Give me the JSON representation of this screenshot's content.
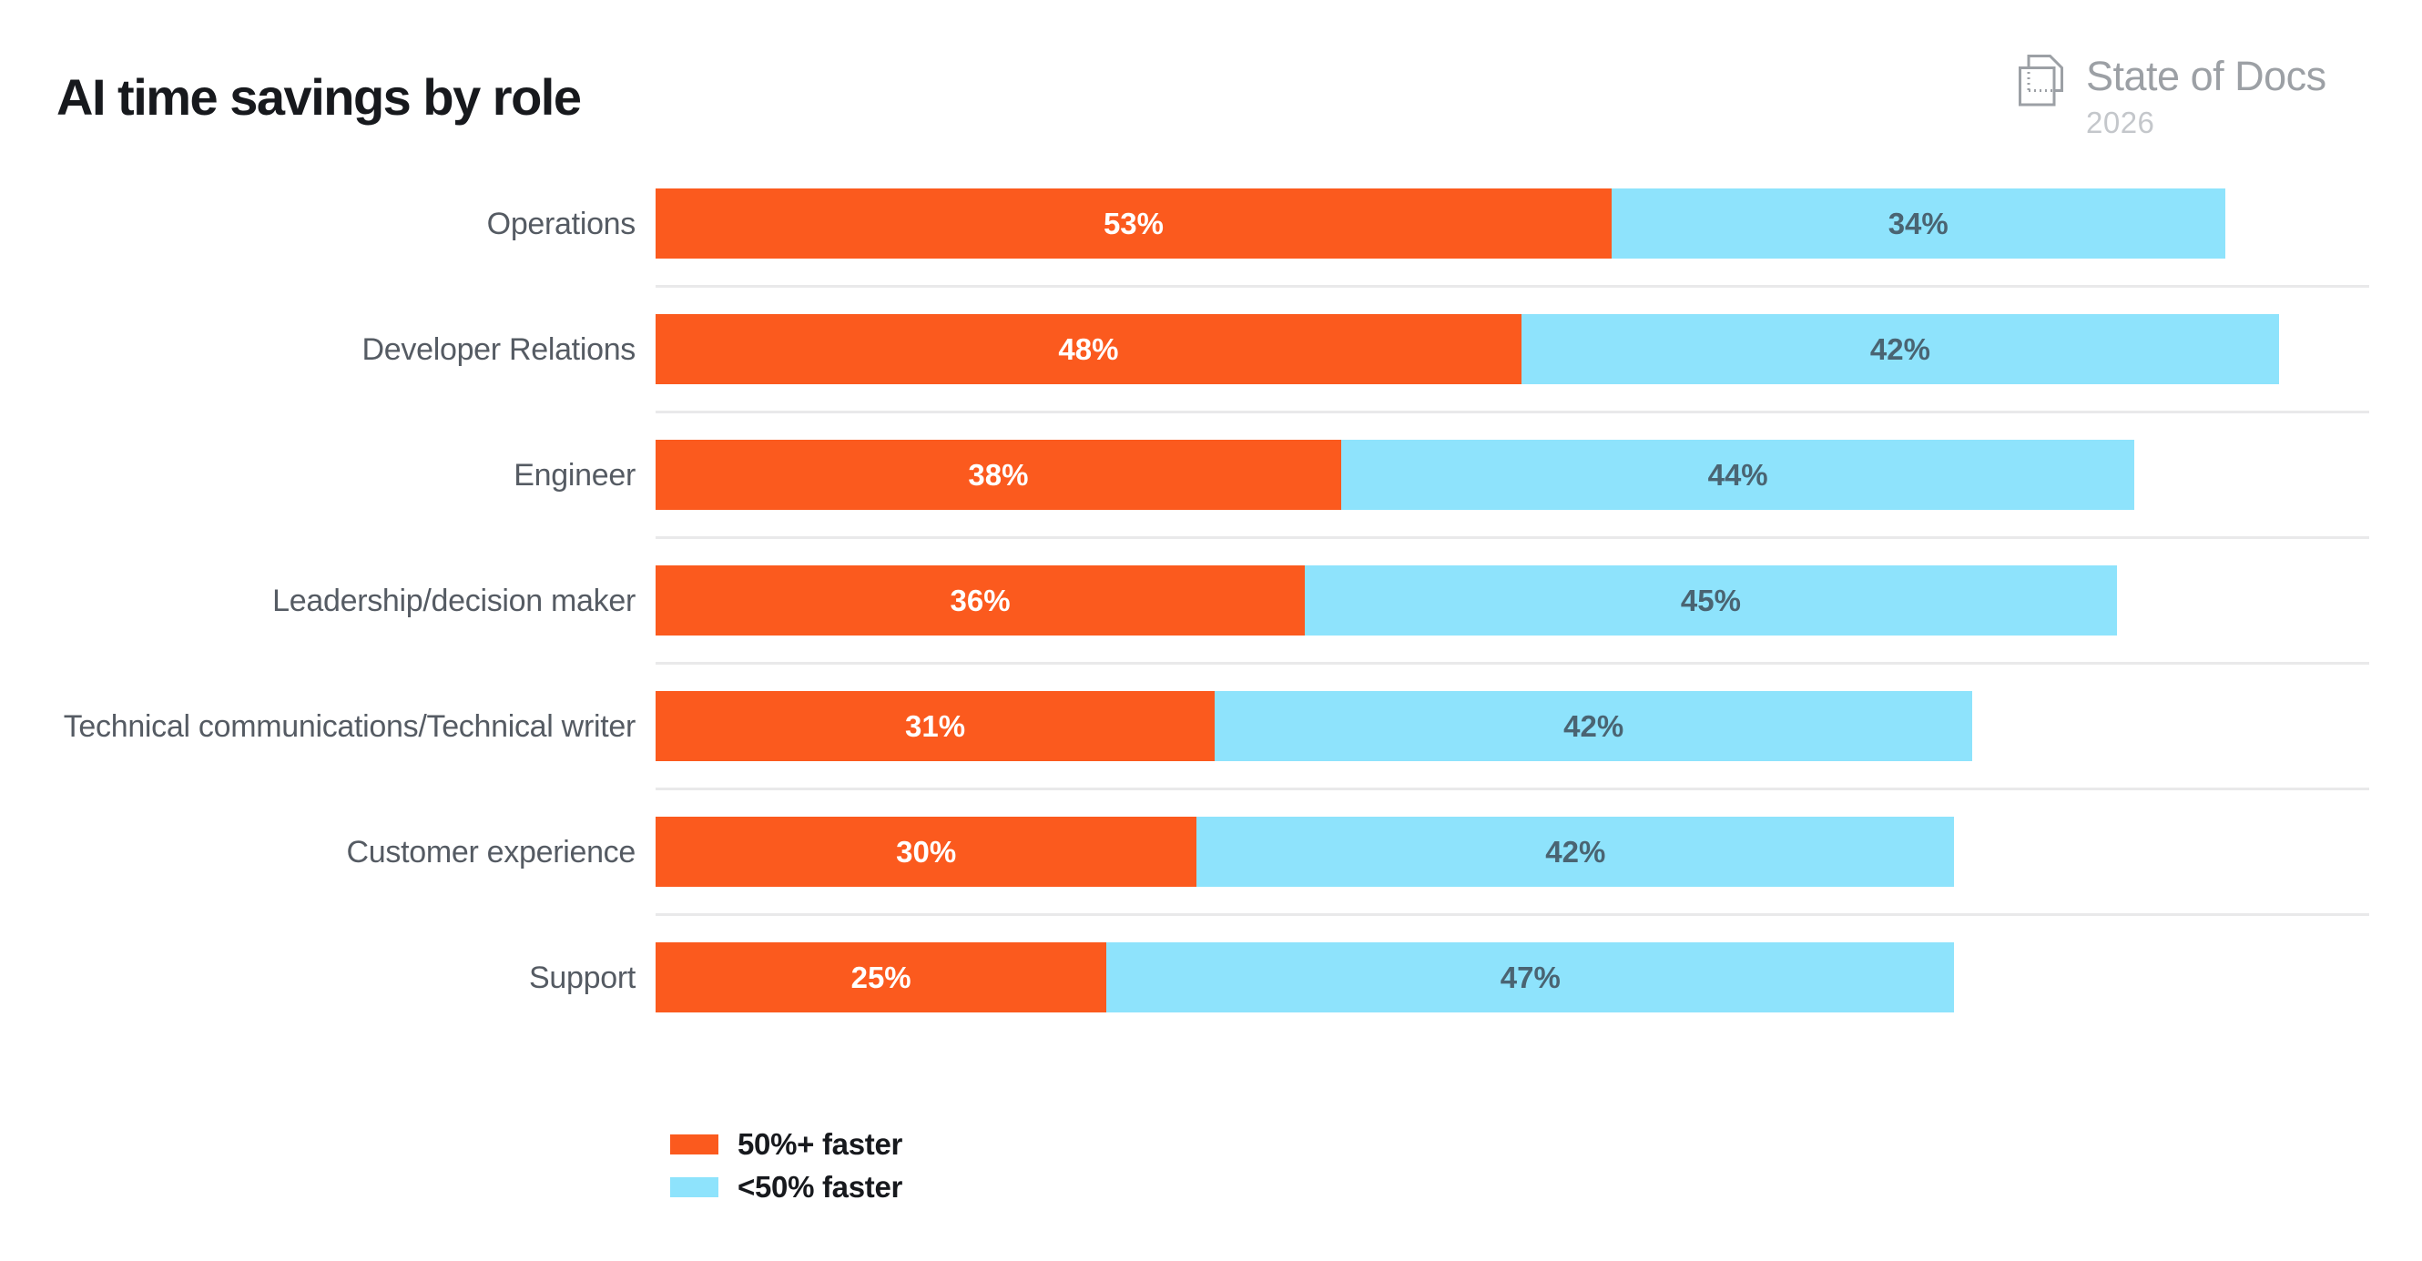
{
  "header": {
    "title": "AI time savings by role",
    "brand": {
      "name": "State of Docs",
      "year": "2026",
      "icon": "overlapping-pages-icon"
    }
  },
  "chart_data": {
    "type": "bar",
    "orientation": "horizontal",
    "stacked": true,
    "title": "AI time savings by role",
    "categories": [
      "Operations",
      "Developer Relations",
      "Engineer",
      "Leadership/decision maker",
      "Technical communications/Technical writer",
      "Customer experience",
      "Support"
    ],
    "series": [
      {
        "name": "50%+ faster",
        "color": "#FB5A1E",
        "label_color": "#FFFFFF",
        "values": [
          53,
          48,
          38,
          36,
          31,
          30,
          25
        ]
      },
      {
        "name": "<50% faster",
        "color": "#8EE3FC",
        "label_color": "#4A6472",
        "values": [
          34,
          42,
          44,
          45,
          42,
          42,
          47
        ]
      }
    ],
    "value_suffix": "%",
    "xlim": [
      0,
      95
    ],
    "grid": false,
    "bar_labels": "inside-center",
    "legend_position": "bottom-left"
  },
  "legend": {
    "items": [
      {
        "label": "50%+ faster",
        "color": "#FB5A1E"
      },
      {
        "label": "<50% faster",
        "color": "#8EE3FC"
      }
    ]
  },
  "colors": {
    "background": "#FFFFFF",
    "orange": "#FB5A1E",
    "light_blue": "#8EE3FC",
    "title_text": "#17191D",
    "category_label_text": "#555B63",
    "orange_value_text": "#FFFFFF",
    "blue_value_text": "#4A6472",
    "row_divider": "#E9E9EA",
    "brand_gray": "#9CA0A5",
    "brand_year_gray": "#C4C7CB"
  }
}
